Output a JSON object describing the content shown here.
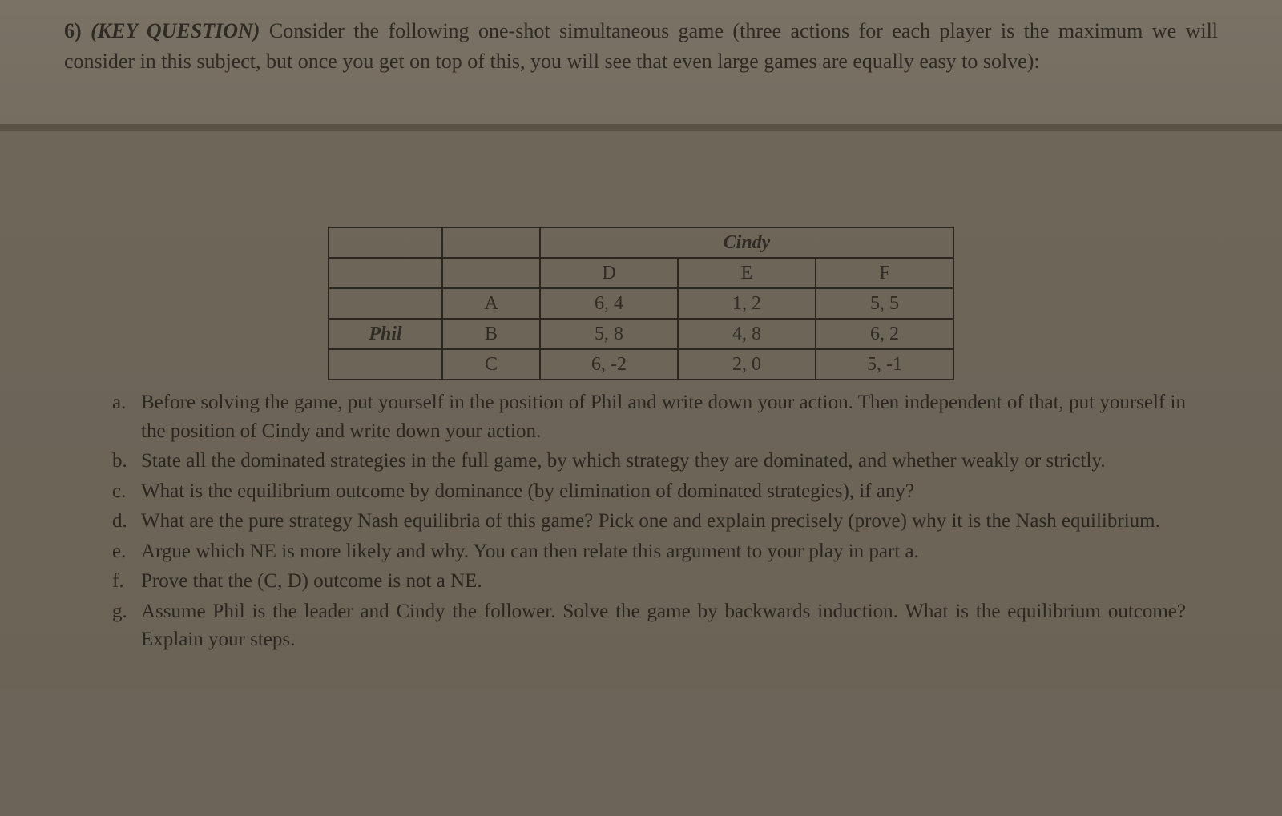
{
  "question": {
    "number": "6)",
    "keyTag": "(KEY QUESTION)",
    "text": "Consider the following one-shot simultaneous game (three actions for each player is the maximum we will consider in this subject, but once you get on top of this, you will see that even large games are equally easy to solve):"
  },
  "gameTable": {
    "colPlayer": "Cindy",
    "rowPlayer": "Phil",
    "cols": [
      "D",
      "E",
      "F"
    ],
    "rows": [
      "A",
      "B",
      "C"
    ],
    "cells": [
      [
        "6, 4",
        "1, 2",
        "5, 5"
      ],
      [
        "5, 8",
        "4, 8",
        "6, 2"
      ],
      [
        "6, -2",
        "2, 0",
        "5, -1"
      ]
    ],
    "border_color": "#2a2620",
    "cell_bg": "transparent",
    "font_size": 24
  },
  "subparts": [
    {
      "label": "a.",
      "text": "Before solving the game, put yourself in the position of Phil and write down your action. Then independent of that, put yourself in the position of Cindy and write down your action."
    },
    {
      "label": "b.",
      "text": "State all the dominated strategies in the full game, by which strategy they are dominated, and whether weakly or strictly."
    },
    {
      "label": "c.",
      "text": "What is the equilibrium outcome by dominance (by elimination of dominated strategies), if any?"
    },
    {
      "label": "d.",
      "text": "What are the pure strategy Nash equilibria of this game? Pick one and explain precisely (prove) why it is the Nash equilibrium."
    },
    {
      "label": "e.",
      "text": "Argue which NE is more likely and why. You can then relate this argument to your play in part a."
    },
    {
      "label": "f.",
      "text": "Prove that the (C, D) outcome is not a NE."
    },
    {
      "label": "g.",
      "text": "Assume Phil is the leader and Cindy the follower. Solve the game by backwards induction. What is the equilibrium outcome? Explain your steps."
    }
  ],
  "colors": {
    "page_top_bg": "#7a7265",
    "page_bottom_bg": "#6b6356",
    "text": "#2a2620",
    "divider_shadow": "#5a5448"
  },
  "typography": {
    "body_font": "Georgia, serif",
    "question_fontsize": 26,
    "sub_fontsize": 25,
    "table_fontsize": 24
  }
}
